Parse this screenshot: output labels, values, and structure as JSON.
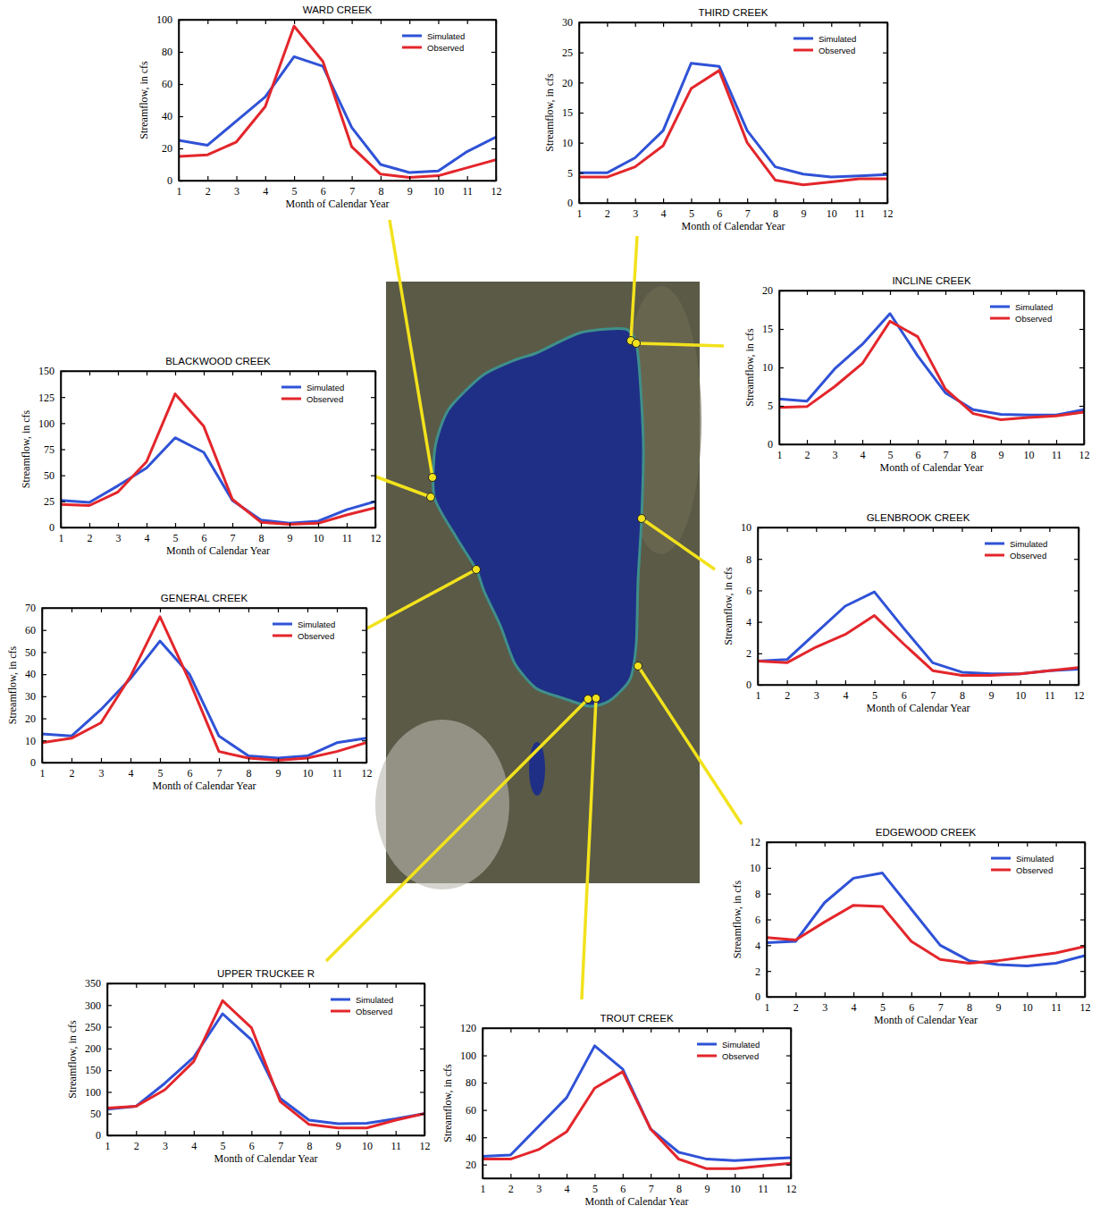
{
  "chart_data": [
    {
      "type": "line",
      "title": "WARD CREEK",
      "x_label": "Month of Calendar Year",
      "y_label": "Streamflow, in cfs",
      "x": [
        1,
        2,
        3,
        4,
        5,
        6,
        7,
        8,
        9,
        10,
        11,
        12
      ],
      "xlim": [
        1,
        12
      ],
      "xticks": [
        1,
        2,
        3,
        4,
        5,
        6,
        7,
        8,
        9,
        10,
        11,
        12
      ],
      "ylim": [
        0,
        100
      ],
      "yticks": [
        0,
        20,
        40,
        60,
        80,
        100
      ],
      "legend": "upper right",
      "series": [
        {
          "name": "Simulated",
          "color": "#2f52d6",
          "values": [
            25,
            22,
            37,
            52,
            77,
            71,
            33,
            10,
            5,
            6,
            18,
            27
          ]
        },
        {
          "name": "Observed",
          "color": "#e3262b",
          "values": [
            15,
            16,
            24,
            46,
            96,
            74,
            21,
            4,
            2,
            3,
            8,
            13
          ]
        }
      ]
    },
    {
      "type": "line",
      "title": "THIRD CREEK",
      "x_label": "Month of Calendar Year",
      "y_label": "Streamflow, in cfs",
      "x": [
        1,
        2,
        3,
        4,
        5,
        6,
        7,
        8,
        9,
        10,
        11,
        12
      ],
      "xlim": [
        1,
        12
      ],
      "xticks": [
        1,
        2,
        3,
        4,
        5,
        6,
        7,
        8,
        9,
        10,
        11,
        12
      ],
      "ylim": [
        0,
        30
      ],
      "yticks": [
        0,
        5,
        10,
        15,
        20,
        25,
        30
      ],
      "legend": "upper right",
      "series": [
        {
          "name": "Simulated",
          "color": "#2f52d6",
          "values": [
            5,
            5,
            7.5,
            12,
            23.2,
            22.7,
            12,
            6,
            4.8,
            4.3,
            4.5,
            4.7
          ]
        },
        {
          "name": "Observed",
          "color": "#e3262b",
          "values": [
            4.3,
            4.3,
            6,
            9.5,
            19,
            22,
            10,
            3.8,
            3,
            3.5,
            4,
            4
          ]
        }
      ]
    },
    {
      "type": "line",
      "title": "INCLINE CREEK",
      "x_label": "Month of Calendar Year",
      "y_label": "Streamflow, in cfs",
      "x": [
        1,
        2,
        3,
        4,
        5,
        6,
        7,
        8,
        9,
        10,
        11,
        12
      ],
      "xlim": [
        1,
        12
      ],
      "xticks": [
        1,
        2,
        3,
        4,
        5,
        6,
        7,
        8,
        9,
        10,
        11,
        12
      ],
      "ylim": [
        0,
        20
      ],
      "yticks": [
        0,
        5,
        10,
        15,
        20
      ],
      "legend": "upper right",
      "series": [
        {
          "name": "Simulated",
          "color": "#2f52d6",
          "values": [
            5.9,
            5.6,
            9.8,
            13,
            17,
            11.5,
            6.7,
            4.5,
            3.9,
            3.8,
            3.8,
            4.5
          ]
        },
        {
          "name": "Observed",
          "color": "#e3262b",
          "values": [
            4.8,
            4.9,
            7.5,
            10.5,
            16,
            14,
            7.2,
            4,
            3.2,
            3.5,
            3.7,
            4.2
          ]
        }
      ]
    },
    {
      "type": "line",
      "title": "BLACKWOOD CREEK",
      "x_label": "Month of Calendar Year",
      "y_label": "Streamflow, in cfs",
      "x": [
        1,
        2,
        3,
        4,
        5,
        6,
        7,
        8,
        9,
        10,
        11,
        12
      ],
      "xlim": [
        1,
        12
      ],
      "xticks": [
        1,
        2,
        3,
        4,
        5,
        6,
        7,
        8,
        9,
        10,
        11,
        12
      ],
      "ylim": [
        0,
        150
      ],
      "yticks": [
        0,
        25,
        50,
        75,
        100,
        125,
        150
      ],
      "legend": "upper right",
      "series": [
        {
          "name": "Simulated",
          "color": "#2f52d6",
          "values": [
            26,
            24,
            40,
            57,
            86,
            72,
            26,
            7,
            4,
            6,
            17,
            25
          ]
        },
        {
          "name": "Observed",
          "color": "#e3262b",
          "values": [
            22,
            21,
            34,
            63,
            128,
            97,
            27,
            5,
            3,
            4,
            12,
            19
          ]
        }
      ]
    },
    {
      "type": "line",
      "title": "GLENBROOK CREEK",
      "x_label": "Month of Calendar Year",
      "y_label": "Streamflow, in cfs",
      "x": [
        1,
        2,
        3,
        4,
        5,
        6,
        7,
        8,
        9,
        10,
        11,
        12
      ],
      "xlim": [
        1,
        12
      ],
      "xticks": [
        1,
        2,
        3,
        4,
        5,
        6,
        7,
        8,
        9,
        10,
        11,
        12
      ],
      "ylim": [
        0,
        10
      ],
      "yticks": [
        0,
        2,
        4,
        6,
        8,
        10
      ],
      "legend": "upper right",
      "series": [
        {
          "name": "Simulated",
          "color": "#2f52d6",
          "values": [
            1.5,
            1.6,
            3.3,
            5,
            5.9,
            3.6,
            1.4,
            0.8,
            0.7,
            0.7,
            0.9,
            1
          ]
        },
        {
          "name": "Observed",
          "color": "#e3262b",
          "values": [
            1.5,
            1.4,
            2.4,
            3.2,
            4.4,
            2.6,
            0.9,
            0.6,
            0.6,
            0.7,
            0.9,
            1.1
          ]
        }
      ]
    },
    {
      "type": "line",
      "title": "GENERAL CREEK",
      "x_label": "Month of Calendar Year",
      "y_label": "Streamflow, in cfs",
      "x": [
        1,
        2,
        3,
        4,
        5,
        6,
        7,
        8,
        9,
        10,
        11,
        12
      ],
      "xlim": [
        1,
        12
      ],
      "xticks": [
        1,
        2,
        3,
        4,
        5,
        6,
        7,
        8,
        9,
        10,
        11,
        12
      ],
      "ylim": [
        0,
        70
      ],
      "yticks": [
        0,
        10,
        20,
        30,
        40,
        50,
        60,
        70
      ],
      "legend": "upper right",
      "series": [
        {
          "name": "Simulated",
          "color": "#2f52d6",
          "values": [
            13,
            12,
            24,
            38,
            55,
            40,
            12,
            3,
            2,
            3,
            9,
            11
          ]
        },
        {
          "name": "Observed",
          "color": "#e3262b",
          "values": [
            9,
            11,
            18,
            39,
            66,
            37,
            5,
            2,
            1,
            2,
            5,
            9
          ]
        }
      ]
    },
    {
      "type": "line",
      "title": "EDGEWOOD CREEK",
      "x_label": "Month of Calendar Year",
      "y_label": "Streamflow, in cfs",
      "x": [
        1,
        2,
        3,
        4,
        5,
        6,
        7,
        8,
        9,
        10,
        11,
        12
      ],
      "xlim": [
        1,
        12
      ],
      "xticks": [
        1,
        2,
        3,
        4,
        5,
        6,
        7,
        8,
        9,
        10,
        11,
        12
      ],
      "ylim": [
        0,
        12
      ],
      "yticks": [
        0,
        2,
        4,
        6,
        8,
        10,
        12
      ],
      "legend": "upper right",
      "series": [
        {
          "name": "Simulated",
          "color": "#2f52d6",
          "values": [
            4.2,
            4.3,
            7.3,
            9.2,
            9.6,
            6.8,
            4,
            2.8,
            2.5,
            2.4,
            2.6,
            3.2
          ]
        },
        {
          "name": "Observed",
          "color": "#e3262b",
          "values": [
            4.6,
            4.4,
            5.8,
            7.1,
            7,
            4.3,
            2.9,
            2.6,
            2.8,
            3.1,
            3.4,
            3.9
          ]
        }
      ]
    },
    {
      "type": "line",
      "title": "UPPER TRUCKEE R",
      "x_label": "Month of Calendar Year",
      "y_label": "Streamflow, in cfs",
      "x": [
        1,
        2,
        3,
        4,
        5,
        6,
        7,
        8,
        9,
        10,
        11,
        12
      ],
      "xlim": [
        1,
        12
      ],
      "xticks": [
        1,
        2,
        3,
        4,
        5,
        6,
        7,
        8,
        9,
        10,
        11,
        12
      ],
      "ylim": [
        0,
        350
      ],
      "yticks": [
        0,
        50,
        100,
        150,
        200,
        250,
        300,
        350
      ],
      "legend": "upper right",
      "series": [
        {
          "name": "Simulated",
          "color": "#2f52d6",
          "values": [
            60,
            67,
            120,
            180,
            280,
            220,
            85,
            35,
            27,
            28,
            38,
            50
          ]
        },
        {
          "name": "Observed",
          "color": "#e3262b",
          "values": [
            63,
            67,
            105,
            170,
            310,
            248,
            78,
            25,
            17,
            17,
            35,
            50
          ]
        }
      ]
    },
    {
      "type": "line",
      "title": "TROUT CREEK",
      "x_label": "Month of Calendar Year",
      "y_label": "Streamflow, in cfs",
      "x": [
        1,
        2,
        3,
        4,
        5,
        6,
        7,
        8,
        9,
        10,
        11,
        12
      ],
      "xlim": [
        1,
        12
      ],
      "xticks": [
        1,
        2,
        3,
        4,
        5,
        6,
        7,
        8,
        9,
        10,
        11,
        12
      ],
      "ylim": [
        10,
        120
      ],
      "yticks": [
        20,
        40,
        60,
        80,
        100,
        120
      ],
      "legend": "upper right",
      "series": [
        {
          "name": "Simulated",
          "color": "#2f52d6",
          "values": [
            26,
            27,
            48,
            69,
            107,
            90,
            46,
            29,
            24,
            23,
            24,
            25
          ]
        },
        {
          "name": "Observed",
          "color": "#e3262b",
          "values": [
            24,
            24,
            31,
            44,
            76,
            88,
            46,
            24,
            17,
            17,
            19,
            21
          ]
        }
      ]
    }
  ]
}
